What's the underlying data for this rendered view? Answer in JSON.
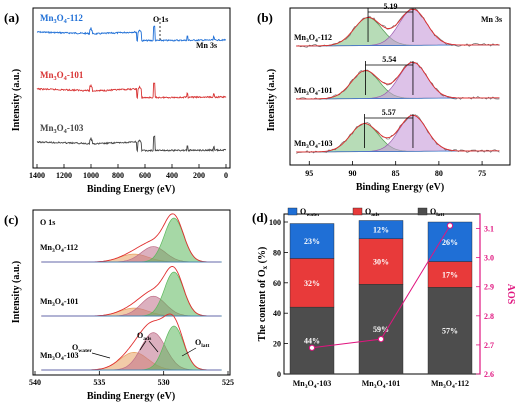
{
  "panels": {
    "a": {
      "label": "(a)",
      "xlabel": "Binding Energy (eV)",
      "ylabel": "Intensity (a.u.)",
      "xticks": [
        "1400",
        "1200",
        "1000",
        "800",
        "600",
        "400",
        "200",
        "0"
      ],
      "peak_labels": {
        "o1s": "O 1s",
        "mn3s": "Mn 3s"
      },
      "series_labels": [
        {
          "name": "Mn3O4-112",
          "base": "Mn",
          "s1": "3",
          "mid": "O",
          "s2": "4",
          "tail": "-112",
          "color": "#1f6fd6"
        },
        {
          "name": "Mn3O4-101",
          "base": "Mn",
          "s1": "3",
          "mid": "O",
          "s2": "4",
          "tail": "-101",
          "color": "#d83434"
        },
        {
          "name": "Mn3O4-103",
          "base": "Mn",
          "s1": "3",
          "mid": "O",
          "s2": "4",
          "tail": "-103",
          "color": "#444444"
        }
      ]
    },
    "b": {
      "label": "(b)",
      "title": "Mn 3s",
      "xlabel": "Binding Energy (eV)",
      "ylabel": "Intensity (a.u.)",
      "xticks": [
        "95",
        "90",
        "85",
        "80",
        "75"
      ],
      "splittings": [
        "5.19",
        "5.54",
        "5.57"
      ],
      "series_labels": [
        {
          "base": "Mn",
          "s1": "3",
          "mid": "O",
          "s2": "4",
          "tail": "-112"
        },
        {
          "base": "Mn",
          "s1": "3",
          "mid": "O",
          "s2": "4",
          "tail": "-101"
        },
        {
          "base": "Mn",
          "s1": "3",
          "mid": "O",
          "s2": "4",
          "tail": "-103"
        }
      ]
    },
    "c": {
      "label": "(c)",
      "title": "O 1s",
      "xlabel": "Binding Energy (eV)",
      "ylabel": "Intensity (a.u.)",
      "xticks": [
        "540",
        "535",
        "530",
        "525"
      ],
      "component_labels": [
        {
          "base": "O",
          "sub": "water"
        },
        {
          "base": "O",
          "sub": "ads"
        },
        {
          "base": "O",
          "sub": "latt"
        }
      ],
      "series_labels": [
        {
          "base": "Mn",
          "s1": "3",
          "mid": "O",
          "s2": "4",
          "tail": "-112"
        },
        {
          "base": "Mn",
          "s1": "3",
          "mid": "O",
          "s2": "4",
          "tail": "-101"
        },
        {
          "base": "Mn",
          "s1": "3",
          "mid": "O",
          "s2": "4",
          "tail": "-103"
        }
      ]
    },
    "d": {
      "label": "(d)",
      "ylabel_left": {
        "base": "The content of O",
        "sub": "x",
        "tail": " (%)"
      },
      "ylabel_right": "AOS",
      "yticks_left": [
        "0",
        "20",
        "40",
        "60",
        "80",
        "100"
      ],
      "yticks_right": [
        "2.6",
        "2.7",
        "2.8",
        "2.9",
        "3.0",
        "3.1"
      ],
      "legend": [
        {
          "base": "O",
          "sub": "water",
          "color": "#1f6fd6"
        },
        {
          "base": "O",
          "sub": "ads",
          "color": "#e83a3a"
        },
        {
          "base": "O",
          "sub": "latt",
          "color": "#4d4d4d"
        }
      ],
      "categories": [
        {
          "base": "Mn",
          "s1": "3",
          "mid": "O",
          "s2": "4",
          "tail": "-103"
        },
        {
          "base": "Mn",
          "s1": "3",
          "mid": "O",
          "s2": "4",
          "tail": "-101"
        },
        {
          "base": "Mn",
          "s1": "3",
          "mid": "O",
          "s2": "4",
          "tail": "-112"
        }
      ]
    }
  },
  "chart_data": [
    {
      "type": "line",
      "panel": "a",
      "xlabel": "Binding Energy (eV)",
      "ylabel": "Intensity (a.u.)",
      "xlim": [
        1400,
        0
      ],
      "series": [
        {
          "name": "Mn3O4-112"
        },
        {
          "name": "Mn3O4-101"
        },
        {
          "name": "Mn3O4-103"
        }
      ]
    },
    {
      "type": "line",
      "panel": "b",
      "title": "Mn 3s",
      "xlabel": "Binding Energy (eV)",
      "ylabel": "Intensity (a.u.)",
      "xlim": [
        97,
        72
      ],
      "peaks": [
        {
          "sample": "Mn3O4-112",
          "high_peak": 88.2,
          "low_peak": 83.0,
          "splitting": 5.19
        },
        {
          "sample": "Mn3O4-101",
          "high_peak": 88.5,
          "low_peak": 83.0,
          "splitting": 5.54
        },
        {
          "sample": "Mn3O4-103",
          "high_peak": 88.6,
          "low_peak": 83.0,
          "splitting": 5.57
        }
      ]
    },
    {
      "type": "line",
      "panel": "c",
      "title": "O 1s",
      "xlabel": "Binding Energy (eV)",
      "ylabel": "Intensity (a.u.)",
      "xlim": [
        540,
        525
      ],
      "components": [
        {
          "name": "O_latt",
          "center": 529.2,
          "color": "#5cb85c"
        },
        {
          "name": "O_ads",
          "center": 530.8,
          "color": "#c0708a"
        },
        {
          "name": "O_water",
          "center": 532.3,
          "color": "#e8a060"
        }
      ],
      "series": [
        {
          "name": "Mn3O4-112",
          "latt": 1.0,
          "ads": 0.35,
          "water": 0.18
        },
        {
          "name": "Mn3O4-101",
          "latt": 1.0,
          "ads": 0.45,
          "water": 0.18
        },
        {
          "name": "Mn3O4-103",
          "latt": 1.0,
          "ads": 0.85,
          "water": 0.4
        }
      ]
    },
    {
      "type": "bar",
      "panel": "d",
      "stacked": true,
      "categories": [
        "Mn3O4-103",
        "Mn3O4-101",
        "Mn3O4-112"
      ],
      "ylabel": "The content of Ox (%)",
      "ylim": [
        0,
        100
      ],
      "series": [
        {
          "name": "O_latt",
          "values": [
            44,
            59,
            57
          ],
          "color": "#4d4d4d"
        },
        {
          "name": "O_ads",
          "values": [
            32,
            30,
            17
          ],
          "color": "#e83a3a"
        },
        {
          "name": "O_water",
          "values": [
            23,
            12,
            26
          ],
          "color": "#1f6fd6"
        }
      ],
      "secondary": {
        "name": "AOS",
        "ylabel": "AOS",
        "ylim": [
          2.6,
          3.15
        ],
        "values": [
          2.69,
          2.72,
          3.11
        ],
        "color": "#e0157f"
      }
    }
  ]
}
